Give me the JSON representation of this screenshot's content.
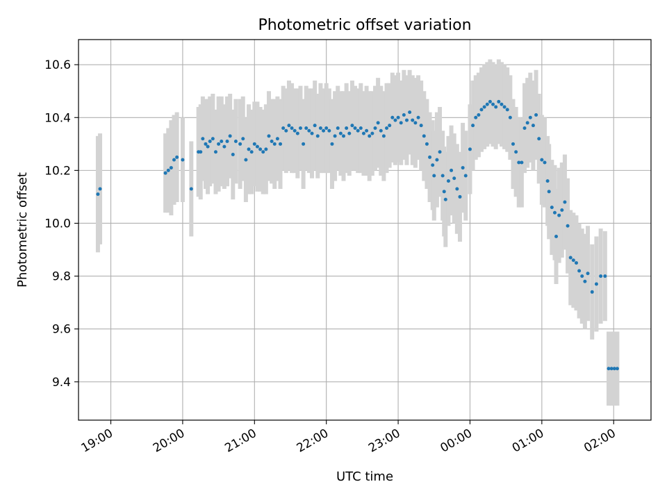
{
  "chart_data": {
    "type": "scatter",
    "title": "Photometric offset variation",
    "xlabel": "UTC time",
    "ylabel": "Photometric offset",
    "x_unit": "hours UTC (values >= 24 are after midnight)",
    "xlim": [
      18.55,
      26.52
    ],
    "ylim": [
      9.255,
      10.695
    ],
    "xticks": [
      19,
      20,
      21,
      22,
      23,
      24,
      25,
      26
    ],
    "xtick_labels": [
      "19:00",
      "20:00",
      "21:00",
      "22:00",
      "23:00",
      "00:00",
      "01:00",
      "02:00"
    ],
    "yticks": [
      9.4,
      9.6,
      9.8,
      10.0,
      10.2,
      10.4,
      10.6
    ],
    "ytick_labels": [
      "9.4",
      "9.6",
      "9.8",
      "10.0",
      "10.2",
      "10.4",
      "10.6"
    ],
    "grid": true,
    "colors": {
      "marker": "#1f77b4",
      "errorbar": "#d3d3d3",
      "grid": "#b0b0b0"
    },
    "marker_size": 2.5,
    "errorbar_linewidth": 6,
    "points": [
      [
        18.82,
        10.11,
        0.22
      ],
      [
        18.85,
        10.13,
        0.21
      ],
      [
        19.76,
        10.19,
        0.15
      ],
      [
        19.8,
        10.2,
        0.16
      ],
      [
        19.84,
        10.21,
        0.18
      ],
      [
        19.88,
        10.24,
        0.17
      ],
      [
        19.92,
        10.25,
        0.17
      ],
      [
        20.0,
        10.24,
        0.16
      ],
      [
        20.12,
        10.13,
        0.18
      ],
      [
        20.22,
        10.27,
        0.17
      ],
      [
        20.25,
        10.27,
        0.18
      ],
      [
        20.28,
        10.32,
        0.16
      ],
      [
        20.32,
        10.3,
        0.17
      ],
      [
        20.35,
        10.29,
        0.18
      ],
      [
        20.38,
        10.31,
        0.17
      ],
      [
        20.42,
        10.32,
        0.17
      ],
      [
        20.46,
        10.27,
        0.16
      ],
      [
        20.5,
        10.3,
        0.18
      ],
      [
        20.54,
        10.31,
        0.17
      ],
      [
        20.58,
        10.29,
        0.16
      ],
      [
        20.62,
        10.31,
        0.17
      ],
      [
        20.66,
        10.33,
        0.16
      ],
      [
        20.7,
        10.26,
        0.17
      ],
      [
        20.74,
        10.31,
        0.16
      ],
      [
        20.8,
        10.3,
        0.17
      ],
      [
        20.84,
        10.32,
        0.16
      ],
      [
        20.88,
        10.24,
        0.16
      ],
      [
        20.92,
        10.28,
        0.17
      ],
      [
        20.96,
        10.27,
        0.16
      ],
      [
        21.0,
        10.3,
        0.16
      ],
      [
        21.04,
        10.29,
        0.17
      ],
      [
        21.08,
        10.28,
        0.16
      ],
      [
        21.12,
        10.27,
        0.16
      ],
      [
        21.16,
        10.28,
        0.17
      ],
      [
        21.2,
        10.33,
        0.17
      ],
      [
        21.24,
        10.31,
        0.16
      ],
      [
        21.28,
        10.3,
        0.17
      ],
      [
        21.32,
        10.32,
        0.16
      ],
      [
        21.36,
        10.3,
        0.17
      ],
      [
        21.4,
        10.36,
        0.16
      ],
      [
        21.44,
        10.35,
        0.16
      ],
      [
        21.48,
        10.37,
        0.17
      ],
      [
        21.52,
        10.36,
        0.17
      ],
      [
        21.56,
        10.35,
        0.16
      ],
      [
        21.6,
        10.34,
        0.17
      ],
      [
        21.64,
        10.36,
        0.16
      ],
      [
        21.68,
        10.3,
        0.17
      ],
      [
        21.72,
        10.36,
        0.16
      ],
      [
        21.76,
        10.35,
        0.16
      ],
      [
        21.8,
        10.34,
        0.17
      ],
      [
        21.84,
        10.37,
        0.17
      ],
      [
        21.88,
        10.33,
        0.16
      ],
      [
        21.92,
        10.36,
        0.17
      ],
      [
        21.96,
        10.35,
        0.16
      ],
      [
        22.0,
        10.36,
        0.17
      ],
      [
        22.04,
        10.35,
        0.16
      ],
      [
        22.08,
        10.3,
        0.17
      ],
      [
        22.12,
        10.33,
        0.17
      ],
      [
        22.16,
        10.36,
        0.16
      ],
      [
        22.2,
        10.34,
        0.16
      ],
      [
        22.24,
        10.33,
        0.17
      ],
      [
        22.28,
        10.36,
        0.17
      ],
      [
        22.32,
        10.34,
        0.16
      ],
      [
        22.36,
        10.37,
        0.17
      ],
      [
        22.4,
        10.36,
        0.16
      ],
      [
        22.44,
        10.35,
        0.16
      ],
      [
        22.48,
        10.36,
        0.17
      ],
      [
        22.52,
        10.34,
        0.16
      ],
      [
        22.56,
        10.35,
        0.17
      ],
      [
        22.6,
        10.33,
        0.17
      ],
      [
        22.64,
        10.34,
        0.16
      ],
      [
        22.68,
        10.36,
        0.16
      ],
      [
        22.72,
        10.38,
        0.17
      ],
      [
        22.76,
        10.35,
        0.17
      ],
      [
        22.8,
        10.33,
        0.17
      ],
      [
        22.84,
        10.36,
        0.17
      ],
      [
        22.88,
        10.37,
        0.16
      ],
      [
        22.92,
        10.4,
        0.17
      ],
      [
        22.96,
        10.39,
        0.17
      ],
      [
        23.0,
        10.4,
        0.17
      ],
      [
        23.04,
        10.38,
        0.16
      ],
      [
        23.08,
        10.41,
        0.17
      ],
      [
        23.12,
        10.39,
        0.17
      ],
      [
        23.16,
        10.42,
        0.16
      ],
      [
        23.2,
        10.39,
        0.17
      ],
      [
        23.24,
        10.38,
        0.17
      ],
      [
        23.28,
        10.4,
        0.16
      ],
      [
        23.32,
        10.37,
        0.17
      ],
      [
        23.36,
        10.33,
        0.17
      ],
      [
        23.4,
        10.3,
        0.17
      ],
      [
        23.44,
        10.25,
        0.17
      ],
      [
        23.48,
        10.22,
        0.17
      ],
      [
        23.5,
        10.18,
        0.17
      ],
      [
        23.54,
        10.24,
        0.18
      ],
      [
        23.58,
        10.27,
        0.17
      ],
      [
        23.62,
        10.18,
        0.17
      ],
      [
        23.64,
        10.12,
        0.17
      ],
      [
        23.66,
        10.09,
        0.18
      ],
      [
        23.7,
        10.16,
        0.17
      ],
      [
        23.74,
        10.2,
        0.17
      ],
      [
        23.78,
        10.17,
        0.17
      ],
      [
        23.82,
        10.13,
        0.17
      ],
      [
        23.86,
        10.1,
        0.17
      ],
      [
        23.9,
        10.21,
        0.17
      ],
      [
        23.94,
        10.18,
        0.17
      ],
      [
        24.0,
        10.28,
        0.17
      ],
      [
        24.04,
        10.37,
        0.17
      ],
      [
        24.08,
        10.4,
        0.16
      ],
      [
        24.12,
        10.41,
        0.16
      ],
      [
        24.16,
        10.43,
        0.16
      ],
      [
        24.2,
        10.44,
        0.16
      ],
      [
        24.24,
        10.45,
        0.16
      ],
      [
        24.28,
        10.46,
        0.16
      ],
      [
        24.32,
        10.45,
        0.16
      ],
      [
        24.36,
        10.44,
        0.16
      ],
      [
        24.4,
        10.46,
        0.16
      ],
      [
        24.44,
        10.45,
        0.16
      ],
      [
        24.48,
        10.44,
        0.16
      ],
      [
        24.52,
        10.43,
        0.16
      ],
      [
        24.56,
        10.4,
        0.16
      ],
      [
        24.6,
        10.3,
        0.17
      ],
      [
        24.64,
        10.27,
        0.17
      ],
      [
        24.68,
        10.23,
        0.17
      ],
      [
        24.72,
        10.23,
        0.17
      ],
      [
        24.76,
        10.36,
        0.17
      ],
      [
        24.8,
        10.38,
        0.17
      ],
      [
        24.84,
        10.4,
        0.17
      ],
      [
        24.88,
        10.37,
        0.17
      ],
      [
        24.92,
        10.41,
        0.17
      ],
      [
        24.96,
        10.32,
        0.17
      ],
      [
        25.0,
        10.24,
        0.17
      ],
      [
        25.04,
        10.23,
        0.17
      ],
      [
        25.08,
        10.16,
        0.17
      ],
      [
        25.1,
        10.12,
        0.18
      ],
      [
        25.14,
        10.06,
        0.18
      ],
      [
        25.18,
        10.04,
        0.18
      ],
      [
        25.2,
        9.95,
        0.18
      ],
      [
        25.24,
        10.03,
        0.18
      ],
      [
        25.28,
        10.05,
        0.18
      ],
      [
        25.32,
        10.08,
        0.18
      ],
      [
        25.36,
        9.99,
        0.18
      ],
      [
        25.4,
        9.87,
        0.18
      ],
      [
        25.44,
        9.86,
        0.18
      ],
      [
        25.48,
        9.85,
        0.18
      ],
      [
        25.52,
        9.82,
        0.18
      ],
      [
        25.56,
        9.8,
        0.18
      ],
      [
        25.6,
        9.78,
        0.18
      ],
      [
        25.64,
        9.81,
        0.18
      ],
      [
        25.7,
        9.74,
        0.18
      ],
      [
        25.76,
        9.77,
        0.18
      ],
      [
        25.82,
        9.8,
        0.18
      ],
      [
        25.88,
        9.8,
        0.17
      ],
      [
        25.93,
        9.45,
        0.14
      ],
      [
        25.97,
        9.45,
        0.14
      ],
      [
        26.01,
        9.45,
        0.14
      ],
      [
        26.05,
        9.45,
        0.14
      ]
    ]
  }
}
